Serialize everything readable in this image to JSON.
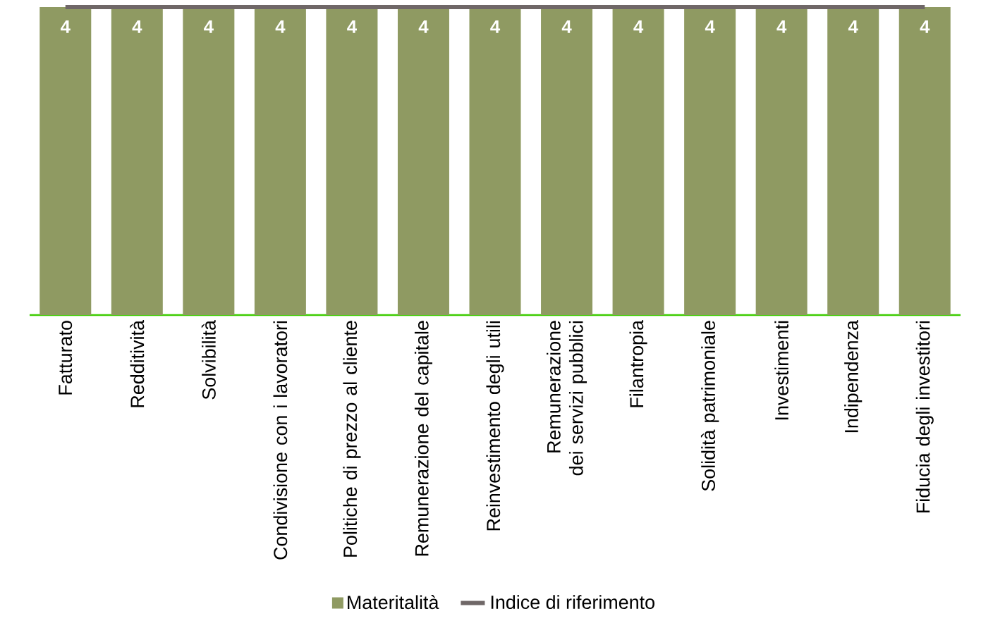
{
  "chart_data": {
    "type": "bar",
    "categories": [
      "Fatturato",
      "Redditività",
      "Solvibilità",
      "Condivisione con i lavoratori",
      "Politiche di prezzo al cliente",
      "Remunerazione del capitale",
      "Reinvestimento degli utili",
      "Remunerazione dei servizi pubblici",
      "Filantropia",
      "Solidità patrimoniale",
      "Investimenti",
      "Indipendenza",
      "Fiducia degli investitori"
    ],
    "series": [
      {
        "name": "Materitalità",
        "color": "#8f9a62",
        "values": [
          4,
          4,
          4,
          4,
          4,
          4,
          4,
          4,
          4,
          4,
          4,
          4,
          4
        ],
        "value_labels": [
          "4",
          "4",
          "4",
          "4",
          "4",
          "4",
          "4",
          "4",
          "4",
          "4",
          "4",
          "4",
          "4"
        ]
      },
      {
        "name": "Indice di riferimento",
        "type": "line",
        "color": "#6f6767",
        "values": [
          4,
          4,
          4,
          4,
          4,
          4,
          4,
          4,
          4,
          4,
          4,
          4,
          4
        ]
      }
    ],
    "ylim": [
      0,
      4
    ],
    "legend": "bottom"
  }
}
